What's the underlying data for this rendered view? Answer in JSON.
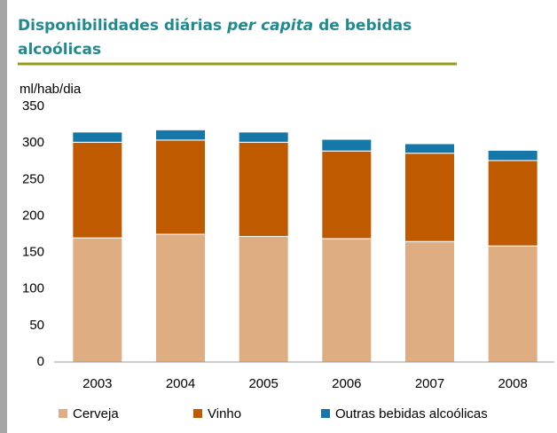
{
  "chart_data": {
    "type": "stacked_bar",
    "title": [
      "Disponibilidades diárias",
      "per capita",
      "de bebidas alcoólicas"
    ],
    "y_label": "ml/hab/dia",
    "categories": [
      "2003",
      "2004",
      "2005",
      "2006",
      "2007",
      "2008"
    ],
    "series": [
      {
        "name": "Cerveja",
        "color": "#deae82",
        "values": [
          170,
          175,
          172,
          169,
          165,
          159
        ]
      },
      {
        "name": "Vinho",
        "color": "#c05a00",
        "values": [
          131,
          129,
          129,
          120,
          121,
          117
        ]
      },
      {
        "name": "Outras bebidas alcoólicas",
        "color": "#1577a7",
        "values": [
          14,
          14,
          14,
          16,
          13,
          14
        ]
      }
    ],
    "ylim": [
      0,
      350
    ],
    "yticks": [
      0,
      50,
      100,
      150,
      200,
      250,
      300,
      350
    ],
    "grid": false,
    "legend": "bottom"
  }
}
